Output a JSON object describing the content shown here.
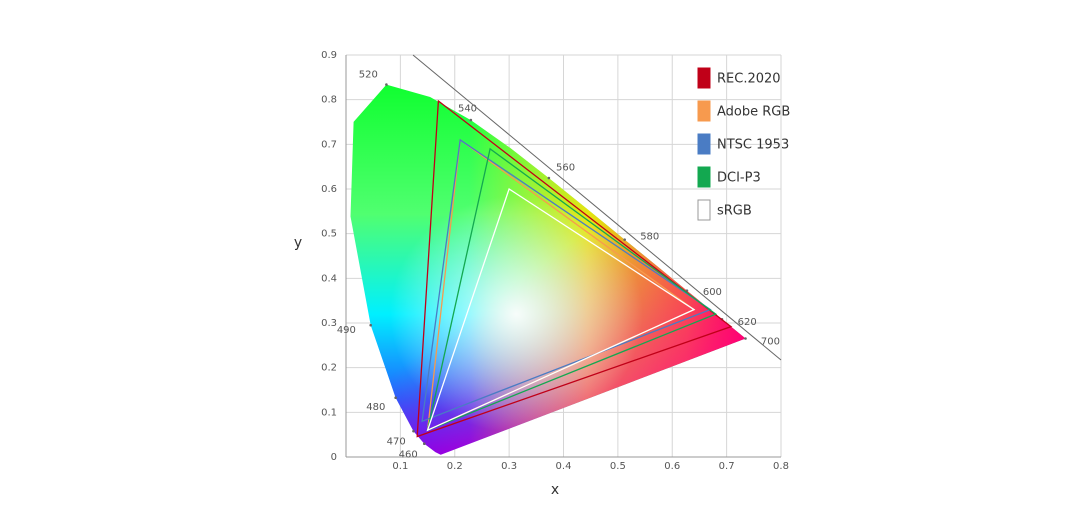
{
  "chart_data": {
    "type": "gamut",
    "xlabel": "x",
    "ylabel": "y",
    "xlim": [
      0,
      0.8
    ],
    "ylim": [
      0,
      0.9
    ],
    "xticks": [
      0.1,
      0.2,
      0.3,
      0.4,
      0.5,
      0.6,
      0.7,
      0.8
    ],
    "yticks": [
      0,
      0.1,
      0.2,
      0.3,
      0.4,
      0.5,
      0.6,
      0.7,
      0.8,
      0.9
    ],
    "grid": true,
    "legend": "upper right",
    "spectral_locus": {
      "labels": [
        null,
        null,
        460,
        470,
        480,
        490,
        null,
        null,
        520,
        null,
        540,
        null,
        560,
        null,
        580,
        null,
        600,
        620,
        700
      ],
      "x": [
        0.1741,
        0.1644,
        0.144,
        0.1241,
        0.0913,
        0.0454,
        0.0082,
        0.0139,
        0.0743,
        0.1547,
        0.2296,
        0.3016,
        0.3731,
        0.4441,
        0.5125,
        0.5752,
        0.627,
        0.6915,
        0.7347
      ],
      "y": [
        0.005,
        0.0109,
        0.0297,
        0.0578,
        0.1327,
        0.295,
        0.5384,
        0.7502,
        0.8338,
        0.8059,
        0.7543,
        0.6923,
        0.6245,
        0.5547,
        0.4866,
        0.4242,
        0.3725,
        0.3083,
        0.2653
      ]
    },
    "series": [
      {
        "name": "REC.2020",
        "color": "#c00018",
        "x": [
          0.708,
          0.17,
          0.131
        ],
        "y": [
          0.292,
          0.797,
          0.046
        ]
      },
      {
        "name": "Adobe RGB",
        "color": "#f79a4e",
        "x": [
          0.64,
          0.21,
          0.15
        ],
        "y": [
          0.33,
          0.71,
          0.06
        ]
      },
      {
        "name": "NTSC 1953",
        "color": "#4a7cc4",
        "x": [
          0.67,
          0.21,
          0.14
        ],
        "y": [
          0.33,
          0.71,
          0.08
        ]
      },
      {
        "name": "DCI-P3",
        "color": "#13a850",
        "x": [
          0.68,
          0.265,
          0.15
        ],
        "y": [
          0.32,
          0.69,
          0.06
        ]
      },
      {
        "name": "sRGB",
        "color": "#ffffff",
        "x": [
          0.64,
          0.3,
          0.15
        ],
        "y": [
          0.33,
          0.6,
          0.06
        ]
      }
    ]
  }
}
